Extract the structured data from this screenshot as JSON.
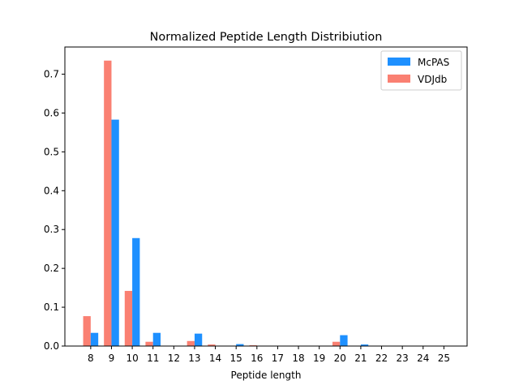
{
  "chart_data": {
    "type": "bar",
    "title": "Normalized Peptide Length Distribiution",
    "xlabel": "Peptide length",
    "ylabel": "",
    "categories": [
      "8",
      "9",
      "10",
      "11",
      "12",
      "13",
      "14",
      "15",
      "16",
      "17",
      "18",
      "19",
      "20",
      "21",
      "22",
      "23",
      "24",
      "25"
    ],
    "ylim": [
      0,
      0.77
    ],
    "yticks": [
      "0.0",
      "0.1",
      "0.2",
      "0.3",
      "0.4",
      "0.5",
      "0.6",
      "0.7"
    ],
    "legend_position": "top-right",
    "grid": false,
    "series": [
      {
        "name": "VDJdb",
        "color": "#fa8072",
        "values": [
          0.077,
          0.735,
          0.142,
          0.011,
          0.0,
          0.013,
          0.004,
          0.001,
          0.002,
          0.0,
          0.0,
          0.0,
          0.011,
          0.0,
          0.0,
          0.0,
          0.0,
          0.0
        ]
      },
      {
        "name": "McPAS",
        "color": "#1e90ff",
        "values": [
          0.034,
          0.583,
          0.278,
          0.034,
          0.0,
          0.032,
          0.0,
          0.005,
          0.0,
          0.0,
          0.0,
          0.0,
          0.028,
          0.004,
          0.0,
          0.0,
          0.0,
          0.0
        ]
      }
    ],
    "legend_order": [
      "McPAS",
      "VDJdb"
    ]
  }
}
